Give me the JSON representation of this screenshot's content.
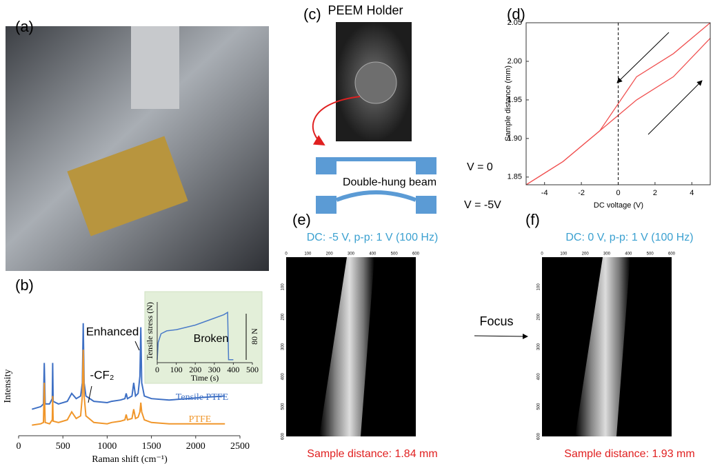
{
  "panels": {
    "a": "(a)",
    "b": "(b)",
    "c": "(c)",
    "d": "(d)",
    "e": "(e)",
    "f": "(f)"
  },
  "holder": {
    "title": "PEEM Holder",
    "beam_label": "Double-hung beam",
    "state_0": "V = 0",
    "state_1": "V = -5V"
  },
  "focus": "Focus",
  "chart_data": [
    {
      "type": "line",
      "xlabel": "Raman shift (cm⁻¹)",
      "ylabel": "Intensity",
      "annotations": [
        "Enhanced",
        "-CF₂"
      ],
      "x": [
        150,
        250,
        280,
        290,
        300,
        350,
        380,
        385,
        390,
        450,
        550,
        600,
        650,
        700,
        720,
        730,
        740,
        760,
        850,
        1000,
        1050,
        1150,
        1200,
        1215,
        1230,
        1280,
        1300,
        1320,
        1350,
        1370,
        1380,
        1390,
        1420,
        1500,
        1700,
        1900,
        2100,
        2330
      ],
      "series": [
        {
          "name": "Tensile PTFE",
          "color": "#3d6fc4",
          "values": [
            20,
            22,
            24,
            55,
            24,
            24,
            28,
            55,
            26,
            24,
            26,
            32,
            28,
            30,
            40,
            85,
            40,
            30,
            26,
            25,
            26,
            27,
            28,
            32,
            28,
            30,
            40,
            30,
            32,
            45,
            82,
            40,
            30,
            28,
            27,
            28,
            29,
            30
          ]
        },
        {
          "name": "PTFE",
          "color": "#f0962a",
          "values": [
            8,
            9,
            10,
            40,
            10,
            9,
            12,
            30,
            11,
            10,
            12,
            18,
            13,
            15,
            30,
            65,
            30,
            15,
            10,
            9,
            10,
            11,
            12,
            16,
            12,
            13,
            20,
            13,
            14,
            18,
            25,
            18,
            12,
            10,
            9,
            9,
            9,
            9
          ]
        }
      ],
      "xlim": [
        0,
        2500
      ],
      "xticks": [
        0,
        500,
        1000,
        1500,
        2000,
        2500
      ],
      "ylim": [
        0,
        100
      ]
    },
    {
      "type": "line",
      "xlabel": "Time (s)",
      "ylabel": "Tensile stress (N)",
      "annotations": [
        "Broken",
        "80 N"
      ],
      "x": [
        0,
        5,
        20,
        50,
        100,
        150,
        200,
        250,
        300,
        350,
        370,
        375,
        380,
        400
      ],
      "series": [
        {
          "color": "#4a7bc8",
          "values": [
            0,
            30,
            45,
            50,
            52,
            56,
            60,
            66,
            72,
            78,
            82,
            0,
            0,
            0
          ]
        }
      ],
      "xlim": [
        0,
        500
      ],
      "xticks": [
        0,
        100,
        200,
        300,
        400,
        500
      ],
      "ylim": [
        -5,
        100
      ]
    },
    {
      "type": "line",
      "xlabel": "DC voltage (V)",
      "ylabel": "Sample distance (mm)",
      "series": [
        {
          "color": "#f05050",
          "x": [
            5,
            3,
            1,
            -1,
            -3,
            -5
          ],
          "values": [
            2.05,
            2.01,
            1.98,
            1.91,
            1.87,
            1.84
          ]
        },
        {
          "color": "#f05050",
          "x": [
            -5,
            -3,
            -1,
            1,
            3,
            5
          ],
          "values": [
            1.84,
            1.87,
            1.91,
            1.95,
            1.98,
            2.03
          ]
        }
      ],
      "zero_line": true,
      "xlim": [
        -5,
        5
      ],
      "xticks": [
        -4,
        -2,
        0,
        2,
        4
      ],
      "ylim": [
        1.84,
        2.05
      ],
      "yticks": [
        1.85,
        {
          "value": 1.9,
          "label": "1.90"
        },
        1.95,
        {
          "value": 2,
          "label": "2.00"
        },
        2.05
      ]
    }
  ],
  "images": [
    {
      "caption": "DC: -5 V, p-p: 1 V (100 Hz)",
      "distance": "Sample distance: 1.84 mm",
      "xlim": [
        0,
        600
      ],
      "xticks": [
        0,
        100,
        200,
        300,
        400,
        500,
        600
      ],
      "ylim": [
        0,
        600
      ],
      "yticks": [
        100,
        200,
        300,
        400,
        500,
        600
      ]
    },
    {
      "caption": "DC: 0 V, p-p: 1 V (100 Hz)",
      "distance": "Sample distance: 1.93 mm",
      "xlim": [
        0,
        600
      ],
      "xticks": [
        0,
        100,
        200,
        300,
        400,
        500,
        600
      ],
      "ylim": [
        0,
        600
      ],
      "yticks": [
        100,
        200,
        300,
        400,
        500,
        600
      ]
    }
  ]
}
